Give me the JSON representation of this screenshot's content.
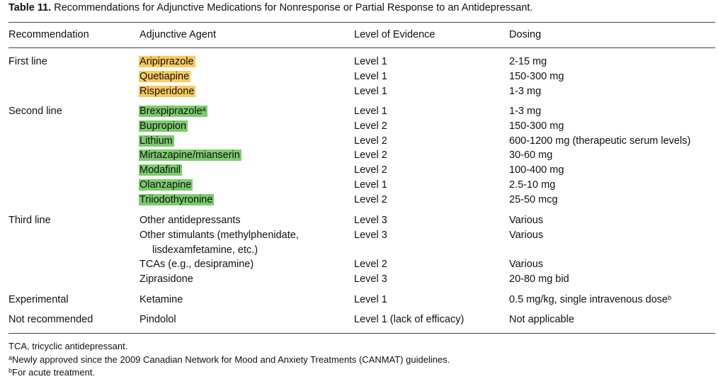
{
  "title": {
    "label": "Table 11.",
    "text": "Recommendations for Adjunctive Medications for Nonresponse or Partial Response to an Antidepressant."
  },
  "headers": [
    "Recommendation",
    "Adjunctive Agent",
    "Level of Evidence",
    "Dosing"
  ],
  "highlight_colors": {
    "first_line": "#f9ca5f",
    "second_line": "#7ccb6e"
  },
  "groups": [
    {
      "recommendation": "First line",
      "rows": [
        {
          "agent": "Aripiprazole",
          "level": "Level 1",
          "dosing": "2-15 mg"
        },
        {
          "agent": "Quetiapine",
          "level": "Level 1",
          "dosing": "150-300 mg"
        },
        {
          "agent": "Risperidone",
          "level": "Level 1",
          "dosing": "1-3 mg"
        }
      ]
    },
    {
      "recommendation": "Second line",
      "rows": [
        {
          "agent": "Brexpiprazole",
          "agent_sup": "a",
          "level": "Level 1",
          "dosing": "1-3 mg"
        },
        {
          "agent": "Bupropion",
          "level": "Level 2",
          "dosing": "150-300 mg"
        },
        {
          "agent": "Lithium",
          "level": "Level 2",
          "dosing": "600-1200 mg (therapeutic serum levels)"
        },
        {
          "agent": "Mirtazapine/mianserin",
          "level": "Level 2",
          "dosing": "30-60 mg"
        },
        {
          "agent": "Modafinil",
          "level": "Level 2",
          "dosing": "100-400 mg"
        },
        {
          "agent": "Olanzapine",
          "level": "Level 1",
          "dosing": "2.5-10 mg"
        },
        {
          "agent": "Triiodothyronine",
          "level": "Level 2",
          "dosing": "25-50 mcg"
        }
      ]
    },
    {
      "recommendation": "Third line",
      "rows": [
        {
          "agent": "Other antidepressants",
          "level": "Level 3",
          "dosing": "Various"
        },
        {
          "agent": "Other stimulants (methylphenidate,",
          "agent_cont": "lisdexamfetamine, etc.)",
          "level": "Level 3",
          "dosing": "Various"
        },
        {
          "agent": "TCAs (e.g., desipramine)",
          "level": "Level 2",
          "dosing": "Various"
        },
        {
          "agent": "Ziprasidone",
          "level": "Level 3",
          "dosing": "20-80 mg bid"
        }
      ]
    },
    {
      "recommendation": "Experimental",
      "rows": [
        {
          "agent": "Ketamine",
          "level": "Level 1",
          "dosing": "0.5 mg/kg, single intravenous dose",
          "dosing_sup": "b"
        }
      ]
    },
    {
      "recommendation": "Not recommended",
      "rows": [
        {
          "agent": "Pindolol",
          "level": "Level 1 (lack of efficacy)",
          "dosing": "Not applicable"
        }
      ]
    }
  ],
  "footnotes": [
    {
      "sup": "",
      "text": "TCA, tricyclic antidepressant."
    },
    {
      "sup": "a",
      "text": "Newly approved since the 2009 Canadian Network for Mood and Anxiety Treatments (CANMAT) guidelines."
    },
    {
      "sup": "b",
      "text": "For acute treatment."
    }
  ]
}
